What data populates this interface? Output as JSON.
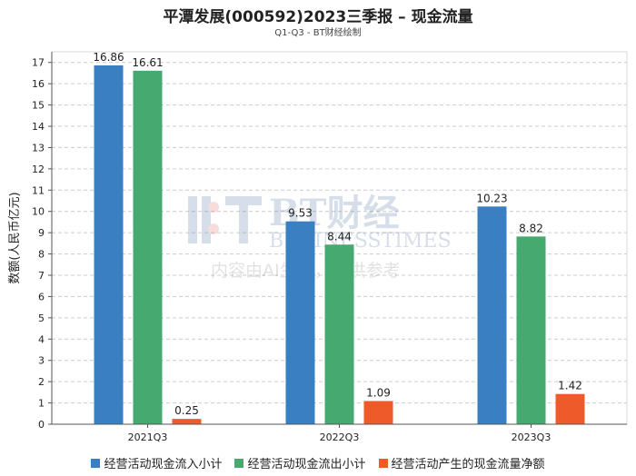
{
  "chart_data": {
    "type": "bar",
    "title": "平潭发展(000592)2023三季报 – 现金流量",
    "subtitle": "Q1-Q3 - BT财经绘制",
    "ylabel": "数额(人民币亿元)",
    "xlabel": "",
    "ylim": [
      0,
      17.5
    ],
    "yticks": [
      0,
      1,
      2,
      3,
      4,
      5,
      6,
      7,
      8,
      9,
      10,
      11,
      12,
      13,
      14,
      15,
      16,
      17
    ],
    "categories": [
      "2021Q3",
      "2022Q3",
      "2023Q3"
    ],
    "series": [
      {
        "name": "经营活动现金流入小计",
        "color": "#3a7fc1",
        "values": [
          16.86,
          9.53,
          10.23
        ],
        "labels": [
          "16.86",
          "9.53",
          "10.23"
        ]
      },
      {
        "name": "经营活动现金流出小计",
        "color": "#46a970",
        "values": [
          16.61,
          8.44,
          8.82
        ],
        "labels": [
          "16.61",
          "8.44",
          "8.82"
        ]
      },
      {
        "name": "经营活动产生的现金流量净额",
        "color": "#ef5a2a",
        "values": [
          0.25,
          1.09,
          1.42
        ],
        "labels": [
          "0.25",
          "1.09",
          "1.42"
        ]
      }
    ],
    "grid": true,
    "legend": "bottom"
  },
  "watermark": {
    "brand": "BT财经",
    "brand_en": "BUSINESSTIMES",
    "note": "内容由AI生成，仅供参考"
  }
}
